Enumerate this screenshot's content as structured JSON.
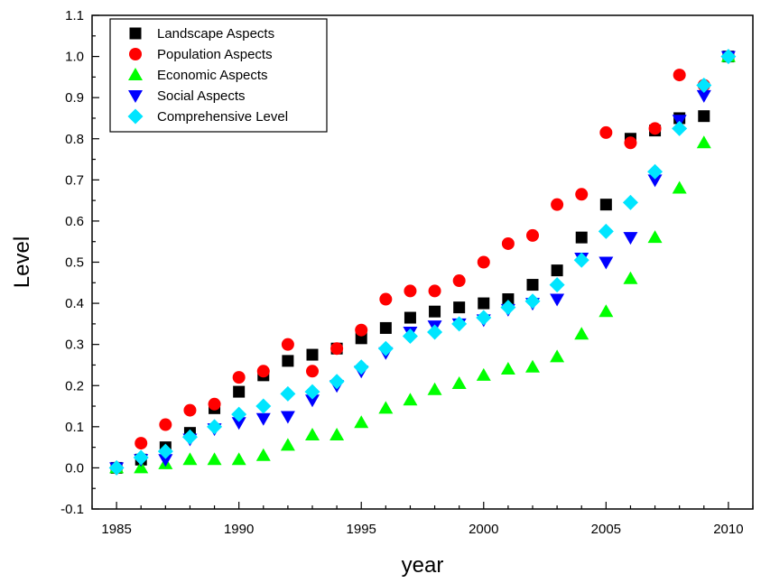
{
  "chart_data": {
    "type": "scatter",
    "title": "",
    "xlabel": "year",
    "ylabel": "Level",
    "xlim": [
      1984,
      2011
    ],
    "ylim": [
      -0.1,
      1.1
    ],
    "xticks": [
      1985,
      1990,
      1995,
      2000,
      2005,
      2010
    ],
    "yticks": [
      "-0.1",
      "0.0",
      "0.1",
      "0.2",
      "0.3",
      "0.4",
      "0.5",
      "0.6",
      "0.7",
      "0.8",
      "0.9",
      "1.0",
      "1.1"
    ],
    "grid": false,
    "legend_position": "top-left",
    "x": [
      1985,
      1986,
      1987,
      1988,
      1989,
      1990,
      1991,
      1992,
      1993,
      1994,
      1995,
      1996,
      1997,
      1998,
      1999,
      2000,
      2001,
      2002,
      2003,
      2004,
      2005,
      2006,
      2007,
      2008,
      2009,
      2010
    ],
    "series": [
      {
        "name": "Landscape Aspects",
        "marker": "square",
        "color": "#000000",
        "values": [
          0.0,
          0.02,
          0.05,
          0.085,
          0.145,
          0.185,
          0.225,
          0.26,
          0.275,
          0.29,
          0.315,
          0.34,
          0.365,
          0.38,
          0.39,
          0.4,
          0.41,
          0.445,
          0.48,
          0.56,
          0.64,
          0.8,
          0.82,
          0.85,
          0.855,
          1.0
        ]
      },
      {
        "name": "Population Aspects",
        "marker": "circle",
        "color": "#ff0000",
        "values": [
          0.0,
          0.06,
          0.105,
          0.14,
          0.155,
          0.22,
          0.235,
          0.3,
          0.235,
          0.29,
          0.335,
          0.41,
          0.43,
          0.43,
          0.455,
          0.5,
          0.545,
          0.565,
          0.64,
          0.665,
          0.815,
          0.79,
          0.825,
          0.955,
          0.93,
          1.0
        ]
      },
      {
        "name": "Economic Aspects",
        "marker": "triangle-up",
        "color": "#00ff00",
        "values": [
          0.0,
          0.0,
          0.01,
          0.02,
          0.02,
          0.02,
          0.03,
          0.055,
          0.08,
          0.08,
          0.11,
          0.145,
          0.165,
          0.19,
          0.205,
          0.225,
          0.24,
          0.245,
          0.27,
          0.325,
          0.38,
          0.46,
          0.56,
          0.68,
          0.79,
          1.0
        ]
      },
      {
        "name": "Social Aspects",
        "marker": "triangle-down",
        "color": "#0000ff",
        "values": [
          0.0,
          0.02,
          0.02,
          0.07,
          0.095,
          0.11,
          0.12,
          0.125,
          0.165,
          0.2,
          0.235,
          0.28,
          0.33,
          0.345,
          0.35,
          0.36,
          0.385,
          0.4,
          0.41,
          0.51,
          0.5,
          0.56,
          0.7,
          0.845,
          0.905,
          1.0
        ]
      },
      {
        "name": "Comprehensive Level",
        "marker": "diamond",
        "color": "#00e5ff",
        "values": [
          0.0,
          0.025,
          0.04,
          0.075,
          0.1,
          0.13,
          0.15,
          0.18,
          0.185,
          0.21,
          0.245,
          0.29,
          0.32,
          0.33,
          0.35,
          0.365,
          0.39,
          0.405,
          0.445,
          0.505,
          0.575,
          0.645,
          0.72,
          0.825,
          0.93,
          1.0
        ]
      }
    ]
  }
}
